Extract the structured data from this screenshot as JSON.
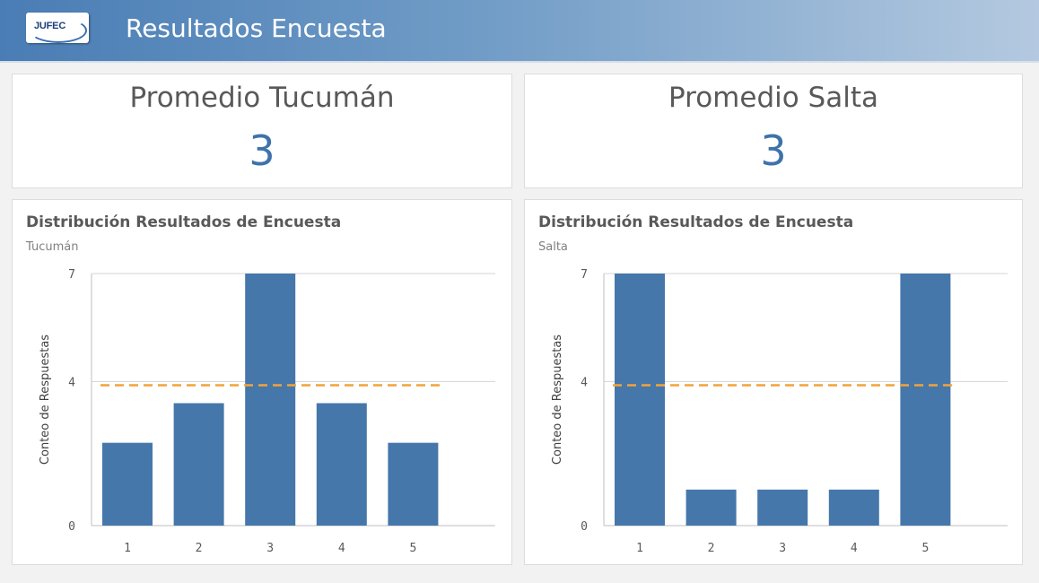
{
  "header": {
    "logo_text": "JUFEC",
    "title": "Resultados Encuesta"
  },
  "kpis": [
    {
      "label": "Promedio Tucumán",
      "value": "3"
    },
    {
      "label": "Promedio Salta",
      "value": "3"
    }
  ],
  "colors": {
    "bar": "#4577ab",
    "average_line": "#f2a33a",
    "kpi_value": "#3f72aa"
  },
  "chart_data": [
    {
      "type": "bar",
      "title": "Distribución Resultados de Encuesta",
      "subtitle": "Tucumán",
      "ylabel": "Conteo de Respuestas",
      "categories": [
        "1",
        "2",
        "3",
        "4",
        "5"
      ],
      "values": [
        2.3,
        3.4,
        7,
        3.4,
        2.3
      ],
      "ylim": [
        0,
        7
      ],
      "yticks": [
        "0",
        "4",
        "7"
      ],
      "reference_line": 3.9,
      "grid": true
    },
    {
      "type": "bar",
      "title": "Distribución Resultados de Encuesta",
      "subtitle": "Salta",
      "ylabel": "Conteo de Respuestas",
      "categories": [
        "1",
        "2",
        "3",
        "4",
        "5"
      ],
      "values": [
        7,
        1,
        1,
        1,
        7
      ],
      "ylim": [
        0,
        7
      ],
      "yticks": [
        "0",
        "4",
        "7"
      ],
      "reference_line": 3.9,
      "grid": true
    }
  ]
}
